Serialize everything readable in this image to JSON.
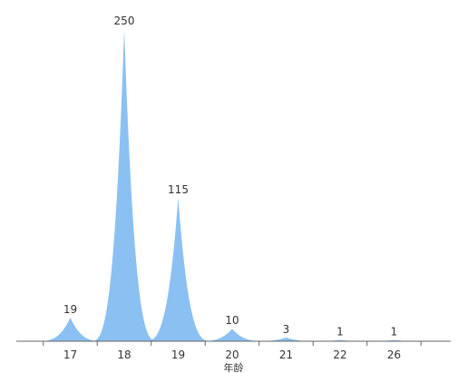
{
  "chart_data": {
    "type": "area",
    "title": "",
    "xlabel": "年龄",
    "ylabel": "",
    "categories": [
      "17",
      "18",
      "19",
      "20",
      "21",
      "22",
      "26"
    ],
    "values": [
      19,
      250,
      115,
      10,
      3,
      1,
      1
    ],
    "data_labels": [
      "19",
      "250",
      "115",
      "10",
      "3",
      "1",
      "1"
    ],
    "ylim": [
      0,
      250
    ],
    "grid": false,
    "legend": "none",
    "color": "#6aaef0"
  }
}
